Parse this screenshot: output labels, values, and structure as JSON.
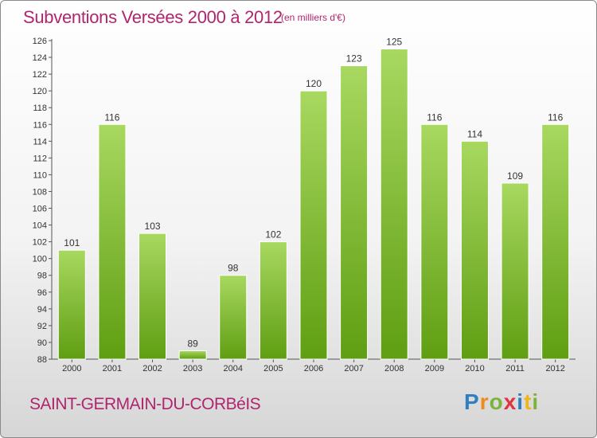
{
  "header": {
    "title": "Subventions Versées 2000 à 2012",
    "unit_note": "(en milliers d'€)"
  },
  "footer": {
    "commune": "SAINT-GERMAIN-DU-CORBéIS",
    "logo_letters": [
      {
        "char": "P",
        "color": "#2f7fc1"
      },
      {
        "char": "r",
        "color": "#f08a1c"
      },
      {
        "char": "o",
        "color": "#7bb33b"
      },
      {
        "char": "x",
        "color": "#e0333d"
      },
      {
        "char": "i",
        "color": "#2f7fc1"
      },
      {
        "char": "t",
        "color": "#f0b41c"
      },
      {
        "char": "i",
        "color": "#7bb33b"
      }
    ]
  },
  "colors": {
    "bar_top": "#a8d860",
    "bar_bottom": "#5f9e12",
    "text": "#333333",
    "accent": "#b0256e"
  },
  "chart_data": {
    "type": "bar",
    "title": "Subventions Versées 2000 à 2012",
    "subtitle": "(en milliers d'€)",
    "xlabel": "",
    "ylabel": "",
    "categories": [
      "2000",
      "2001",
      "2002",
      "2003",
      "2004",
      "2005",
      "2006",
      "2007",
      "2008",
      "2009",
      "2010",
      "2011",
      "2012"
    ],
    "values": [
      101,
      116,
      103,
      89,
      98,
      102,
      120,
      123,
      125,
      116,
      114,
      109,
      116
    ],
    "ylim": [
      88,
      126
    ],
    "yticks": [
      88,
      90,
      92,
      94,
      96,
      98,
      100,
      102,
      104,
      106,
      108,
      110,
      112,
      114,
      116,
      118,
      120,
      122,
      124,
      126
    ],
    "grid": false,
    "data_labels": true
  }
}
